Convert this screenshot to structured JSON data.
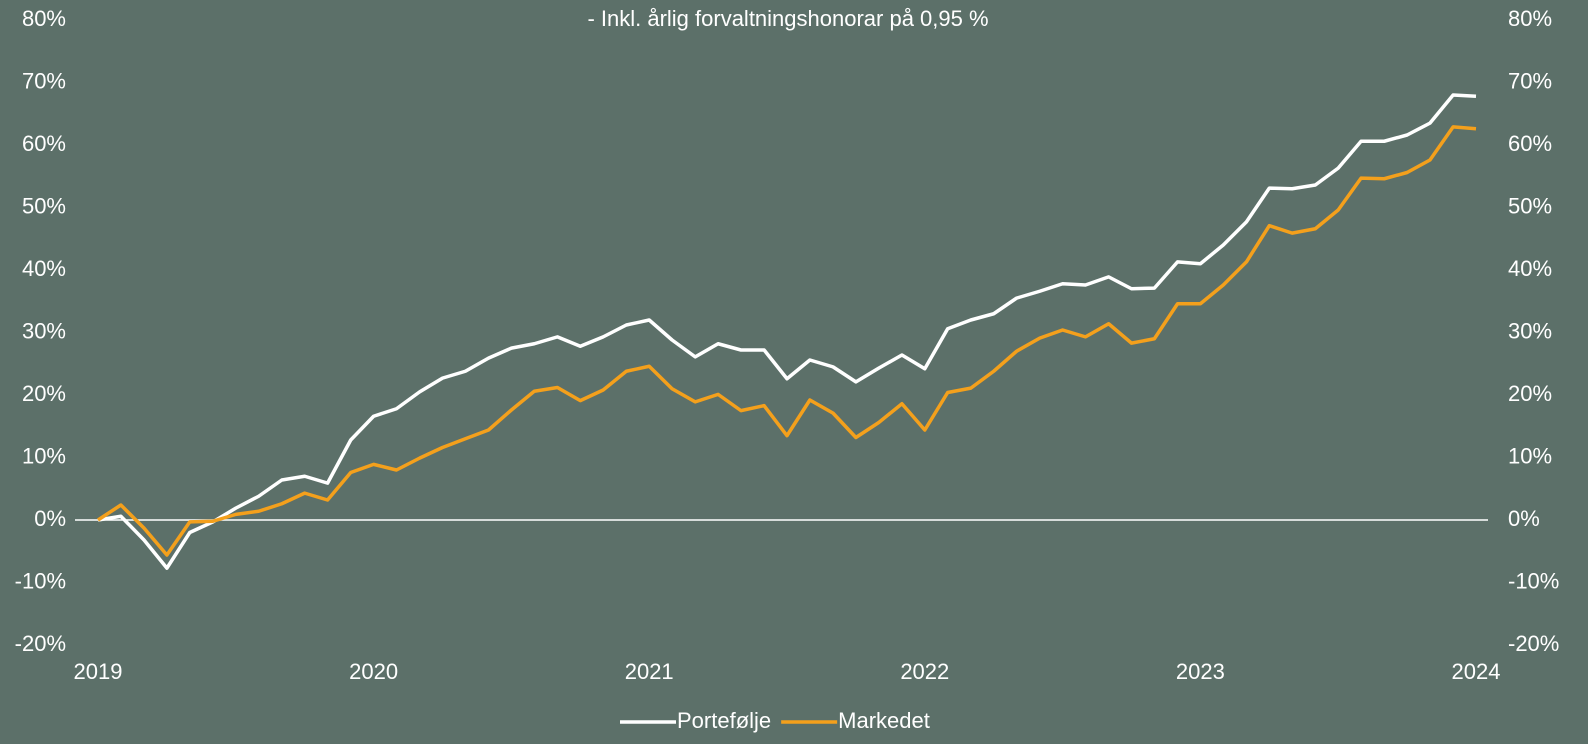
{
  "chart_data": {
    "type": "line",
    "title": "- Inkl. årlig forvaltningshonorar på 0,95 %",
    "x": [
      2019,
      2019.083,
      2019.167,
      2019.25,
      2019.333,
      2019.417,
      2019.5,
      2019.583,
      2019.667,
      2019.75,
      2019.833,
      2019.917,
      2020,
      2020.083,
      2020.167,
      2020.25,
      2020.333,
      2020.417,
      2020.5,
      2020.583,
      2020.667,
      2020.75,
      2020.833,
      2020.917,
      2021,
      2021.083,
      2021.167,
      2021.25,
      2021.333,
      2021.417,
      2021.5,
      2021.583,
      2021.667,
      2021.75,
      2021.833,
      2021.917,
      2022,
      2022.083,
      2022.167,
      2022.25,
      2022.333,
      2022.417,
      2022.5,
      2022.583,
      2022.667,
      2022.75,
      2022.833,
      2022.917,
      2023,
      2023.083,
      2023.167,
      2023.25,
      2023.333,
      2023.417,
      2023.5,
      2023.583,
      2023.667,
      2023.75,
      2023.833,
      2023.917,
      2024
    ],
    "series": [
      {
        "name": "Portefølje",
        "color": "#ffffff",
        "values": [
          0,
          0.6,
          -3.2,
          -7.7,
          -2,
          -0.3,
          1.9,
          3.8,
          6.4,
          7,
          5.9,
          12.8,
          16.6,
          17.8,
          20.5,
          22.7,
          23.8,
          25.9,
          27.5,
          28.2,
          29.3,
          27.8,
          29.3,
          31.2,
          32,
          28.8,
          26.1,
          28.2,
          27.2,
          27.2,
          22.6,
          25.6,
          24.5,
          22.1,
          24.3,
          26.4,
          24.2,
          30.6,
          32,
          33,
          35.5,
          36.6,
          37.8,
          37.6,
          38.9,
          37,
          37.1,
          41.3,
          41,
          44,
          47.7,
          53.1,
          53,
          53.6,
          56.3,
          60.6,
          60.6,
          61.6,
          63.5,
          68,
          67.8
        ]
      },
      {
        "name": "Markedet",
        "color": "#f4a01c",
        "values": [
          0,
          2.4,
          -1.3,
          -5.6,
          -0.3,
          -0.2,
          0.9,
          1.4,
          2.6,
          4.3,
          3.2,
          7.6,
          8.9,
          8,
          9.9,
          11.6,
          13,
          14.4,
          17.6,
          20.6,
          21.2,
          19.1,
          20.8,
          23.8,
          24.6,
          21,
          18.9,
          20.1,
          17.5,
          18.3,
          13.5,
          19.2,
          17.1,
          13.2,
          15.6,
          18.6,
          14.4,
          20.4,
          21.1,
          23.8,
          27,
          29.1,
          30.4,
          29.3,
          31.4,
          28.3,
          29,
          34.6,
          34.6,
          37.6,
          41.3,
          47.1,
          45.9,
          46.6,
          49.6,
          54.7,
          54.6,
          55.6,
          57.6,
          62.9,
          62.6
        ]
      }
    ],
    "xlim": [
      2019,
      2024
    ],
    "xticks": [
      2019,
      2020,
      2021,
      2022,
      2023,
      2024
    ],
    "ylim": [
      -20,
      80
    ],
    "yticks": [
      {
        "value": -20,
        "label": "-20%"
      },
      {
        "value": -10,
        "label": "-10%"
      },
      {
        "value": 0,
        "label": "0%"
      },
      {
        "value": 10,
        "label": "10%"
      },
      {
        "value": 20,
        "label": "20%"
      },
      {
        "value": 30,
        "label": "30%"
      },
      {
        "value": 40,
        "label": "40%"
      },
      {
        "value": 50,
        "label": "50%"
      },
      {
        "value": 60,
        "label": "60%"
      },
      {
        "value": 70,
        "label": "70%"
      },
      {
        "value": 80,
        "label": "80%"
      }
    ],
    "y2lim": [
      -20,
      80
    ],
    "y2ticks": [
      {
        "value": -20,
        "label": "-20%"
      },
      {
        "value": -10,
        "label": "-10%"
      },
      {
        "value": 0,
        "label": "0%"
      },
      {
        "value": 10,
        "label": "10%"
      },
      {
        "value": 20,
        "label": "20%"
      },
      {
        "value": 30,
        "label": "30%"
      },
      {
        "value": 40,
        "label": "40%"
      },
      {
        "value": 50,
        "label": "50%"
      },
      {
        "value": 60,
        "label": "60%"
      },
      {
        "value": 70,
        "label": "70%"
      },
      {
        "value": 80,
        "label": "80%"
      }
    ],
    "legend": "bottom"
  }
}
